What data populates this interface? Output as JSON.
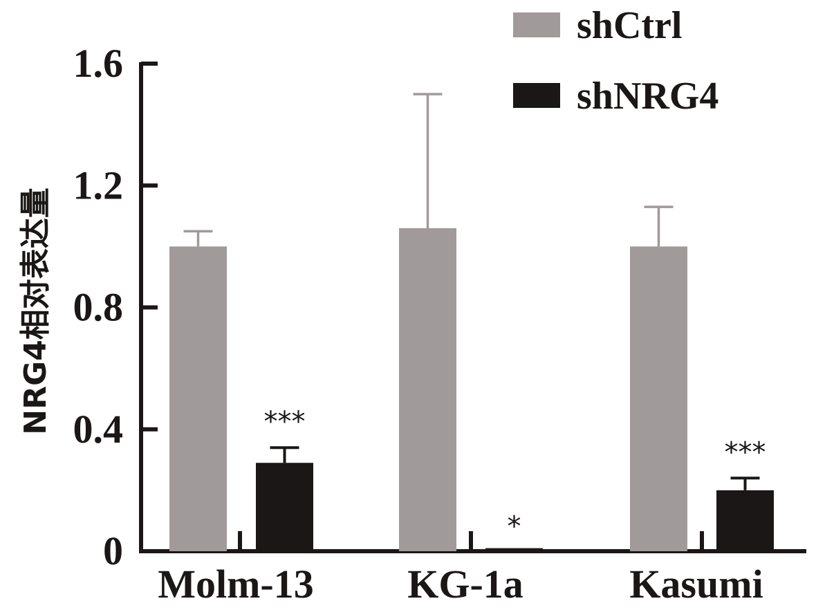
{
  "chart_data": {
    "type": "bar",
    "title": "",
    "xlabel": "",
    "ylabel": "NRG4相对表达量",
    "ylim": [
      0,
      1.6
    ],
    "yticks": [
      0,
      0.4,
      0.8,
      1.2,
      1.6
    ],
    "ytick_labels": [
      "0",
      "0.4",
      "0.8",
      "1.2",
      "1.6"
    ],
    "grid": false,
    "legend_position": "top-right",
    "categories": [
      "Molm-13",
      "KG-1a",
      "Kasumi"
    ],
    "series": [
      {
        "name": "shCtrl",
        "color": "#a09a9a",
        "values": [
          1.0,
          1.06,
          1.0
        ],
        "errors": [
          0.05,
          0.44,
          0.13
        ],
        "annotations": [
          "",
          "",
          ""
        ]
      },
      {
        "name": "shNRG4",
        "color": "#1a1716",
        "values": [
          0.29,
          0.01,
          0.2
        ],
        "errors": [
          0.05,
          0.0,
          0.04
        ],
        "annotations": [
          "***",
          "*",
          "***"
        ]
      }
    ]
  }
}
